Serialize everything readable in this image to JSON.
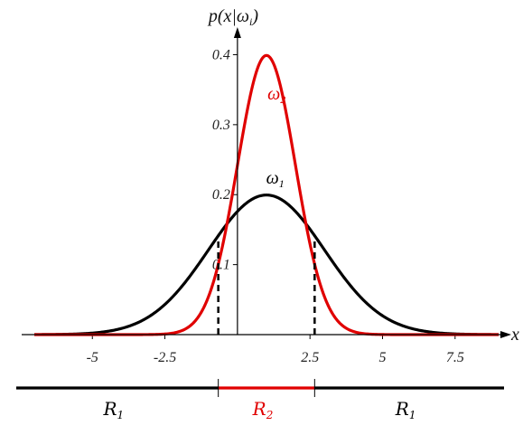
{
  "chart_data": {
    "type": "line",
    "title": "",
    "xlabel": "x",
    "ylabel_parts": {
      "p": "p(x|",
      "omega": "ω",
      "sub": "i",
      "close": ")"
    },
    "xlim": [
      -7,
      9
    ],
    "ylim": [
      0,
      0.42
    ],
    "x_ticks": [
      -5,
      -2.5,
      2.5,
      5,
      7.5
    ],
    "x_tick_labels": [
      "-5",
      "-2.5",
      "2.5",
      "5",
      "7.5"
    ],
    "y_ticks": [
      0.1,
      0.2,
      0.3,
      0.4
    ],
    "y_tick_labels": [
      "0.1",
      "0.2",
      "0.3",
      "0.4"
    ],
    "series": [
      {
        "name_symbol": "ω",
        "name_sub": "1",
        "distribution": "normal",
        "mean": 1,
        "sd": 2,
        "color": "#000000"
      },
      {
        "name_symbol": "ω",
        "name_sub": "2",
        "distribution": "normal",
        "mean": 1,
        "sd": 1,
        "color": "#e00000"
      }
    ],
    "decision_boundaries": [
      -0.66,
      2.66
    ],
    "regions": [
      {
        "symbol": "R",
        "sub": "1",
        "from": -7,
        "to": -0.66,
        "color": "#000000"
      },
      {
        "symbol": "R",
        "sub": "2",
        "from": -0.66,
        "to": 2.66,
        "color": "#e00000"
      },
      {
        "symbol": "R",
        "sub": "1",
        "from": 2.66,
        "to": 9,
        "color": "#000000"
      }
    ]
  }
}
